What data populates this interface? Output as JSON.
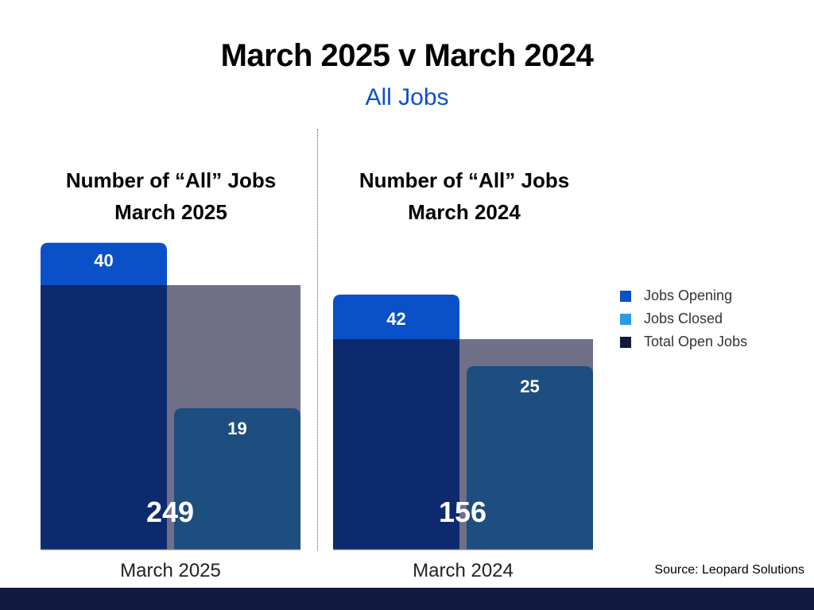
{
  "title": "March 2025 v March 2024",
  "subtitle": "All Jobs",
  "source": "Source: Leopard Solutions",
  "colors": {
    "jobs_opening": "#0a50c8",
    "jobs_closed": "#2a9be8",
    "total_open_jobs": "#111a3e",
    "total_bar": "#0d2a6e",
    "closed_bar": "#1e4d80",
    "background_block": "#6f7088",
    "subtitle": "#0a50c8"
  },
  "legend": [
    {
      "label": "Jobs Opening",
      "color": "#0a50c8"
    },
    {
      "label": "Jobs Closed",
      "color": "#2a9be8"
    },
    {
      "label": "Total Open Jobs",
      "color": "#111a3e"
    }
  ],
  "chart_data": [
    {
      "type": "bar",
      "title_line1": "Number of “All” Jobs",
      "title_line2": "March 2025",
      "xlabel": "March 2025",
      "total_open_jobs": 249,
      "series": [
        {
          "name": "Jobs Opening",
          "value": 40
        },
        {
          "name": "Jobs Closed",
          "value": 19
        }
      ]
    },
    {
      "type": "bar",
      "title_line1": "Number of “All” Jobs",
      "title_line2": "March 2024",
      "xlabel": "March 2024",
      "total_open_jobs": 156,
      "series": [
        {
          "name": "Jobs Opening",
          "value": 42
        },
        {
          "name": "Jobs Closed",
          "value": 25
        }
      ]
    }
  ]
}
